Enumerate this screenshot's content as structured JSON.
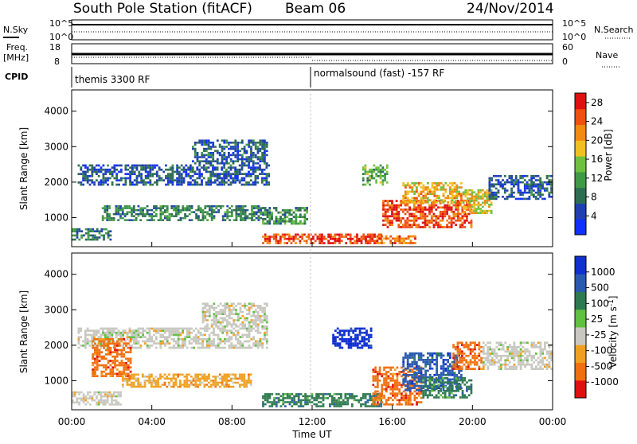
{
  "header": {
    "station": "South Pole Station (fitACF)",
    "beam": "Beam 06",
    "date": "24/Nov/2014"
  },
  "panels": {
    "nsky": {
      "left_label": "N.Sky",
      "left_ticks": [
        "10^5",
        "10^0"
      ],
      "right_ticks": [
        "10^5",
        "10^0"
      ],
      "right_label": "N.Search"
    },
    "freq": {
      "left_label_1": "Freq.",
      "left_label_2": "[MHz]",
      "left_ticks": [
        "18",
        "8"
      ],
      "right_ticks": [
        "60",
        "0"
      ],
      "right_label": "Nave"
    },
    "cpid": {
      "label": "CPID",
      "segment_1": "themis 3300 RF",
      "segment_2": "normalsound (fast) -157 RF"
    }
  },
  "chart_data": [
    {
      "type": "heatmap",
      "name": "power",
      "ylabel": "Slant Range [km]",
      "yticks": [
        "1000",
        "2000",
        "3000",
        "4000"
      ],
      "ylim": [
        180,
        4600
      ],
      "x_range_hours": [
        0,
        24
      ],
      "colorbar": {
        "label": "Power [dB]",
        "ticks": [
          "4",
          "8",
          "12",
          "16",
          "20",
          "24",
          "28"
        ],
        "colors": [
          "#1030ff",
          "#2040b0",
          "#2e6e50",
          "#3f9a45",
          "#70c040",
          "#f0c020",
          "#f08a10",
          "#f05010",
          "#e01010"
        ],
        "range": [
          0,
          30
        ]
      },
      "regions": [
        {
          "t0": 0.3,
          "t1": 9.9,
          "r0": 1900,
          "r1": 2500,
          "level": 0.2
        },
        {
          "t0": 6.0,
          "t1": 9.8,
          "r0": 2500,
          "r1": 3200,
          "level": 0.22
        },
        {
          "t0": 1.5,
          "t1": 9.5,
          "r0": 900,
          "r1": 1350,
          "level": 0.3
        },
        {
          "t0": 0.0,
          "t1": 2.0,
          "r0": 350,
          "r1": 700,
          "level": 0.3
        },
        {
          "t0": 9.5,
          "t1": 11.8,
          "r0": 800,
          "r1": 1300,
          "level": 0.35
        },
        {
          "t0": 9.5,
          "t1": 12.0,
          "r0": 250,
          "r1": 550,
          "level": 0.82
        },
        {
          "t0": 12.0,
          "t1": 15.5,
          "r0": 250,
          "r1": 550,
          "level": 0.88
        },
        {
          "t0": 14.5,
          "t1": 15.8,
          "r0": 1900,
          "r1": 2500,
          "level": 0.45
        },
        {
          "t0": 15.5,
          "t1": 20.0,
          "r0": 700,
          "r1": 1500,
          "level": 0.85
        },
        {
          "t0": 16.5,
          "t1": 19.5,
          "r0": 1400,
          "r1": 2000,
          "level": 0.65
        },
        {
          "t0": 19.5,
          "t1": 21.0,
          "r0": 1100,
          "r1": 1800,
          "level": 0.6
        },
        {
          "t0": 20.8,
          "t1": 24.0,
          "r0": 1500,
          "r1": 2200,
          "level": 0.2
        },
        {
          "t0": 15.2,
          "t1": 17.2,
          "r0": 250,
          "r1": 500,
          "level": 0.78
        }
      ]
    },
    {
      "type": "heatmap",
      "name": "velocity",
      "ylabel": "Slant Range [km]",
      "yticks": [
        "1000",
        "2000",
        "3000",
        "4000"
      ],
      "ylim": [
        180,
        4600
      ],
      "x_range_hours": [
        0,
        24
      ],
      "xticks": [
        "00:00",
        "04:00",
        "08:00",
        "12:00",
        "16:00",
        "20:00",
        "00:00"
      ],
      "xlabel": "Time UT",
      "colorbar": {
        "label": "Velocity [m s^-1]",
        "ticks": [
          "1000",
          "500",
          "100",
          "25",
          "-25",
          "-100",
          "-500",
          "-1000"
        ],
        "colors": [
          "#1030d0",
          "#2a5ab0",
          "#2e7a50",
          "#60c040",
          "#c8c8c0",
          "#f0a020",
          "#f07010",
          "#e01010"
        ]
      },
      "regions": [
        {
          "t0": 0.3,
          "t1": 9.8,
          "r0": 1900,
          "r1": 2500,
          "level": 4
        },
        {
          "t0": 6.5,
          "t1": 9.8,
          "r0": 2500,
          "r1": 3200,
          "level": 4
        },
        {
          "t0": 1.0,
          "t1": 3.0,
          "r0": 1100,
          "r1": 2200,
          "level": 6
        },
        {
          "t0": 2.5,
          "t1": 9.0,
          "r0": 800,
          "r1": 1200,
          "level": 5
        },
        {
          "t0": 0.0,
          "t1": 2.5,
          "r0": 300,
          "r1": 700,
          "level": 4
        },
        {
          "t0": 9.5,
          "t1": 15.5,
          "r0": 250,
          "r1": 650,
          "level": 2
        },
        {
          "t0": 13.0,
          "t1": 15.0,
          "r0": 1900,
          "r1": 2500,
          "level": 0
        },
        {
          "t0": 15.0,
          "t1": 17.5,
          "r0": 300,
          "r1": 1400,
          "level": 6
        },
        {
          "t0": 16.5,
          "t1": 19.5,
          "r0": 700,
          "r1": 1800,
          "level": 1
        },
        {
          "t0": 19.0,
          "t1": 20.5,
          "r0": 1300,
          "r1": 2100,
          "level": 6
        },
        {
          "t0": 20.5,
          "t1": 24.0,
          "r0": 1300,
          "r1": 2100,
          "level": 4
        },
        {
          "t0": 17.5,
          "t1": 20.0,
          "r0": 500,
          "r1": 1100,
          "level": 2
        }
      ]
    }
  ]
}
